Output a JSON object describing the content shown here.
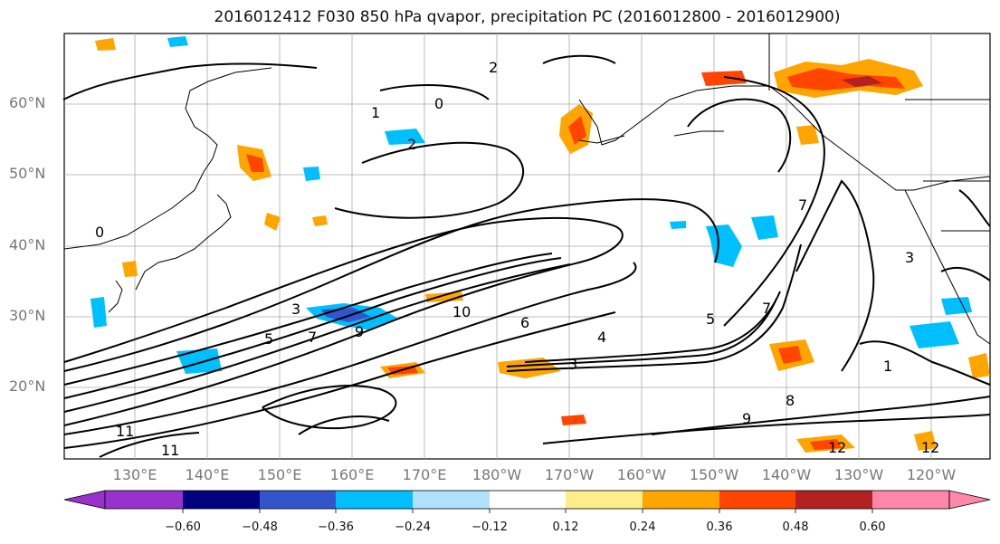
{
  "title": "2016012412 F030 850 hPa qvapor, precipitation PC (2016012800 - 2016012900)",
  "map": {
    "lat_labels": [
      "60°N",
      "50°N",
      "40°N",
      "30°N",
      "20°N"
    ],
    "lon_labels": [
      "130°E",
      "140°E",
      "150°E",
      "160°E",
      "170°E",
      "180°W",
      "170°W",
      "160°W",
      "150°W",
      "140°W",
      "130°W",
      "120°W"
    ]
  },
  "contour_labels": [
    "1",
    "0",
    "2",
    "0",
    "2",
    "3",
    "5",
    "7",
    "9",
    "10",
    "6",
    "5",
    "4",
    "3",
    "8",
    "7",
    "11",
    "11",
    "12",
    "12",
    "9",
    "7",
    "1",
    "3"
  ],
  "colorbar": {
    "colors": [
      "#9932cc",
      "#000080",
      "#3355cc",
      "#00bfff",
      "#b0e2ff",
      "#ffffff",
      "#ffec8b",
      "#ffa500",
      "#ff4500",
      "#b22222",
      "#ff88aa"
    ],
    "tick_labels": [
      "−0.60",
      "−0.48",
      "−0.36",
      "−0.24",
      "−0.12",
      "0.12",
      "0.24",
      "0.36",
      "0.48",
      "0.60"
    ]
  }
}
